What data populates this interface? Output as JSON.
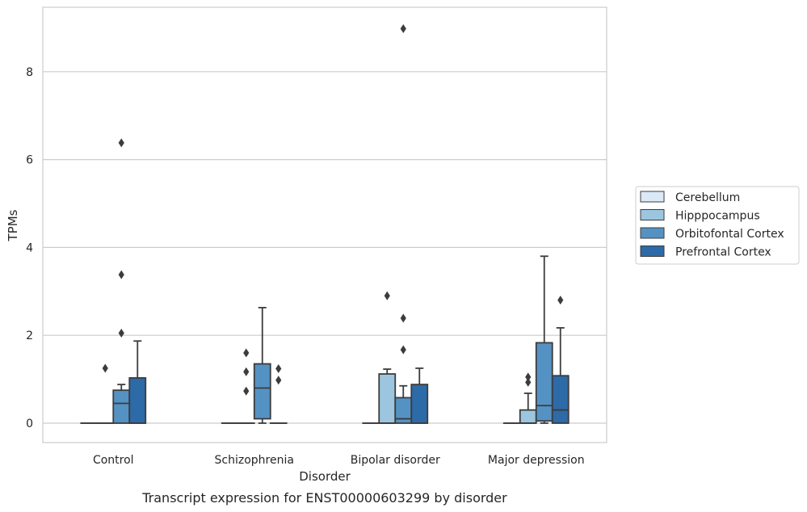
{
  "caption": "Transcript expression for ENST00000603299 by disorder",
  "chart_data": {
    "type": "box",
    "title": "",
    "xlabel": "Disorder",
    "ylabel": "TPMs",
    "ylim": [
      -0.45,
      9.45
    ],
    "yticks": [
      0,
      2,
      4,
      6,
      8
    ],
    "grid": "horizontal",
    "legend_position": "right",
    "categories": [
      "Control",
      "Schizophrenia",
      "Bipolar disorder",
      "Major depression"
    ],
    "series": [
      {
        "name": "Cerebellum",
        "color": "#dbe9f6",
        "boxes": [
          {
            "q1": 0,
            "median": 0,
            "q3": 0,
            "whisker_low": 0,
            "whisker_high": 0,
            "outliers": []
          },
          {
            "q1": 0,
            "median": 0,
            "q3": 0,
            "whisker_low": 0,
            "whisker_high": 0,
            "outliers": []
          },
          {
            "q1": 0,
            "median": 0,
            "q3": 0,
            "whisker_low": 0,
            "whisker_high": 0,
            "outliers": []
          },
          {
            "q1": 0,
            "median": 0,
            "q3": 0,
            "whisker_low": 0,
            "whisker_high": 0,
            "outliers": []
          }
        ]
      },
      {
        "name": "Hipppocampus",
        "color": "#9cc6e0",
        "boxes": [
          {
            "q1": 0,
            "median": 0,
            "q3": 0,
            "whisker_low": 0,
            "whisker_high": 0,
            "outliers": [
              1.25
            ]
          },
          {
            "q1": 0,
            "median": 0,
            "q3": 0,
            "whisker_low": 0,
            "whisker_high": 0,
            "outliers": [
              1.17,
              0.73,
              1.6
            ]
          },
          {
            "q1": 0,
            "median": 0,
            "q3": 1.12,
            "whisker_low": 0,
            "whisker_high": 1.23,
            "outliers": [
              2.9
            ]
          },
          {
            "q1": 0,
            "median": 0,
            "q3": 0.3,
            "whisker_low": 0,
            "whisker_high": 0.68,
            "outliers": [
              0.93,
              1.05
            ]
          }
        ]
      },
      {
        "name": "Orbitofontal Cortex",
        "color": "#5592c4",
        "boxes": [
          {
            "q1": 0,
            "median": 0.45,
            "q3": 0.75,
            "whisker_low": 0,
            "whisker_high": 0.88,
            "outliers": [
              2.05,
              3.38,
              6.38
            ]
          },
          {
            "q1": 0.1,
            "median": 0.8,
            "q3": 1.35,
            "whisker_low": 0,
            "whisker_high": 2.63,
            "outliers": []
          },
          {
            "q1": 0,
            "median": 0.1,
            "q3": 0.58,
            "whisker_low": 0,
            "whisker_high": 0.85,
            "outliers": [
              1.67,
              2.39,
              8.98
            ]
          },
          {
            "q1": 0.05,
            "median": 0.4,
            "q3": 1.83,
            "whisker_low": 0,
            "whisker_high": 3.8,
            "outliers": []
          }
        ]
      },
      {
        "name": "Prefrontal Cortex",
        "color": "#2d6aa8",
        "boxes": [
          {
            "q1": 0,
            "median": 0,
            "q3": 1.03,
            "whisker_low": 0,
            "whisker_high": 1.87,
            "outliers": []
          },
          {
            "q1": 0,
            "median": 0,
            "q3": 0,
            "whisker_low": 0,
            "whisker_high": 0,
            "outliers": [
              0.98,
              1.24
            ]
          },
          {
            "q1": 0,
            "median": 0,
            "q3": 0.88,
            "whisker_low": 0,
            "whisker_high": 1.25,
            "outliers": []
          },
          {
            "q1": 0,
            "median": 0.3,
            "q3": 1.08,
            "whisker_low": 0,
            "whisker_high": 2.17,
            "outliers": [
              2.8
            ]
          }
        ]
      }
    ]
  }
}
